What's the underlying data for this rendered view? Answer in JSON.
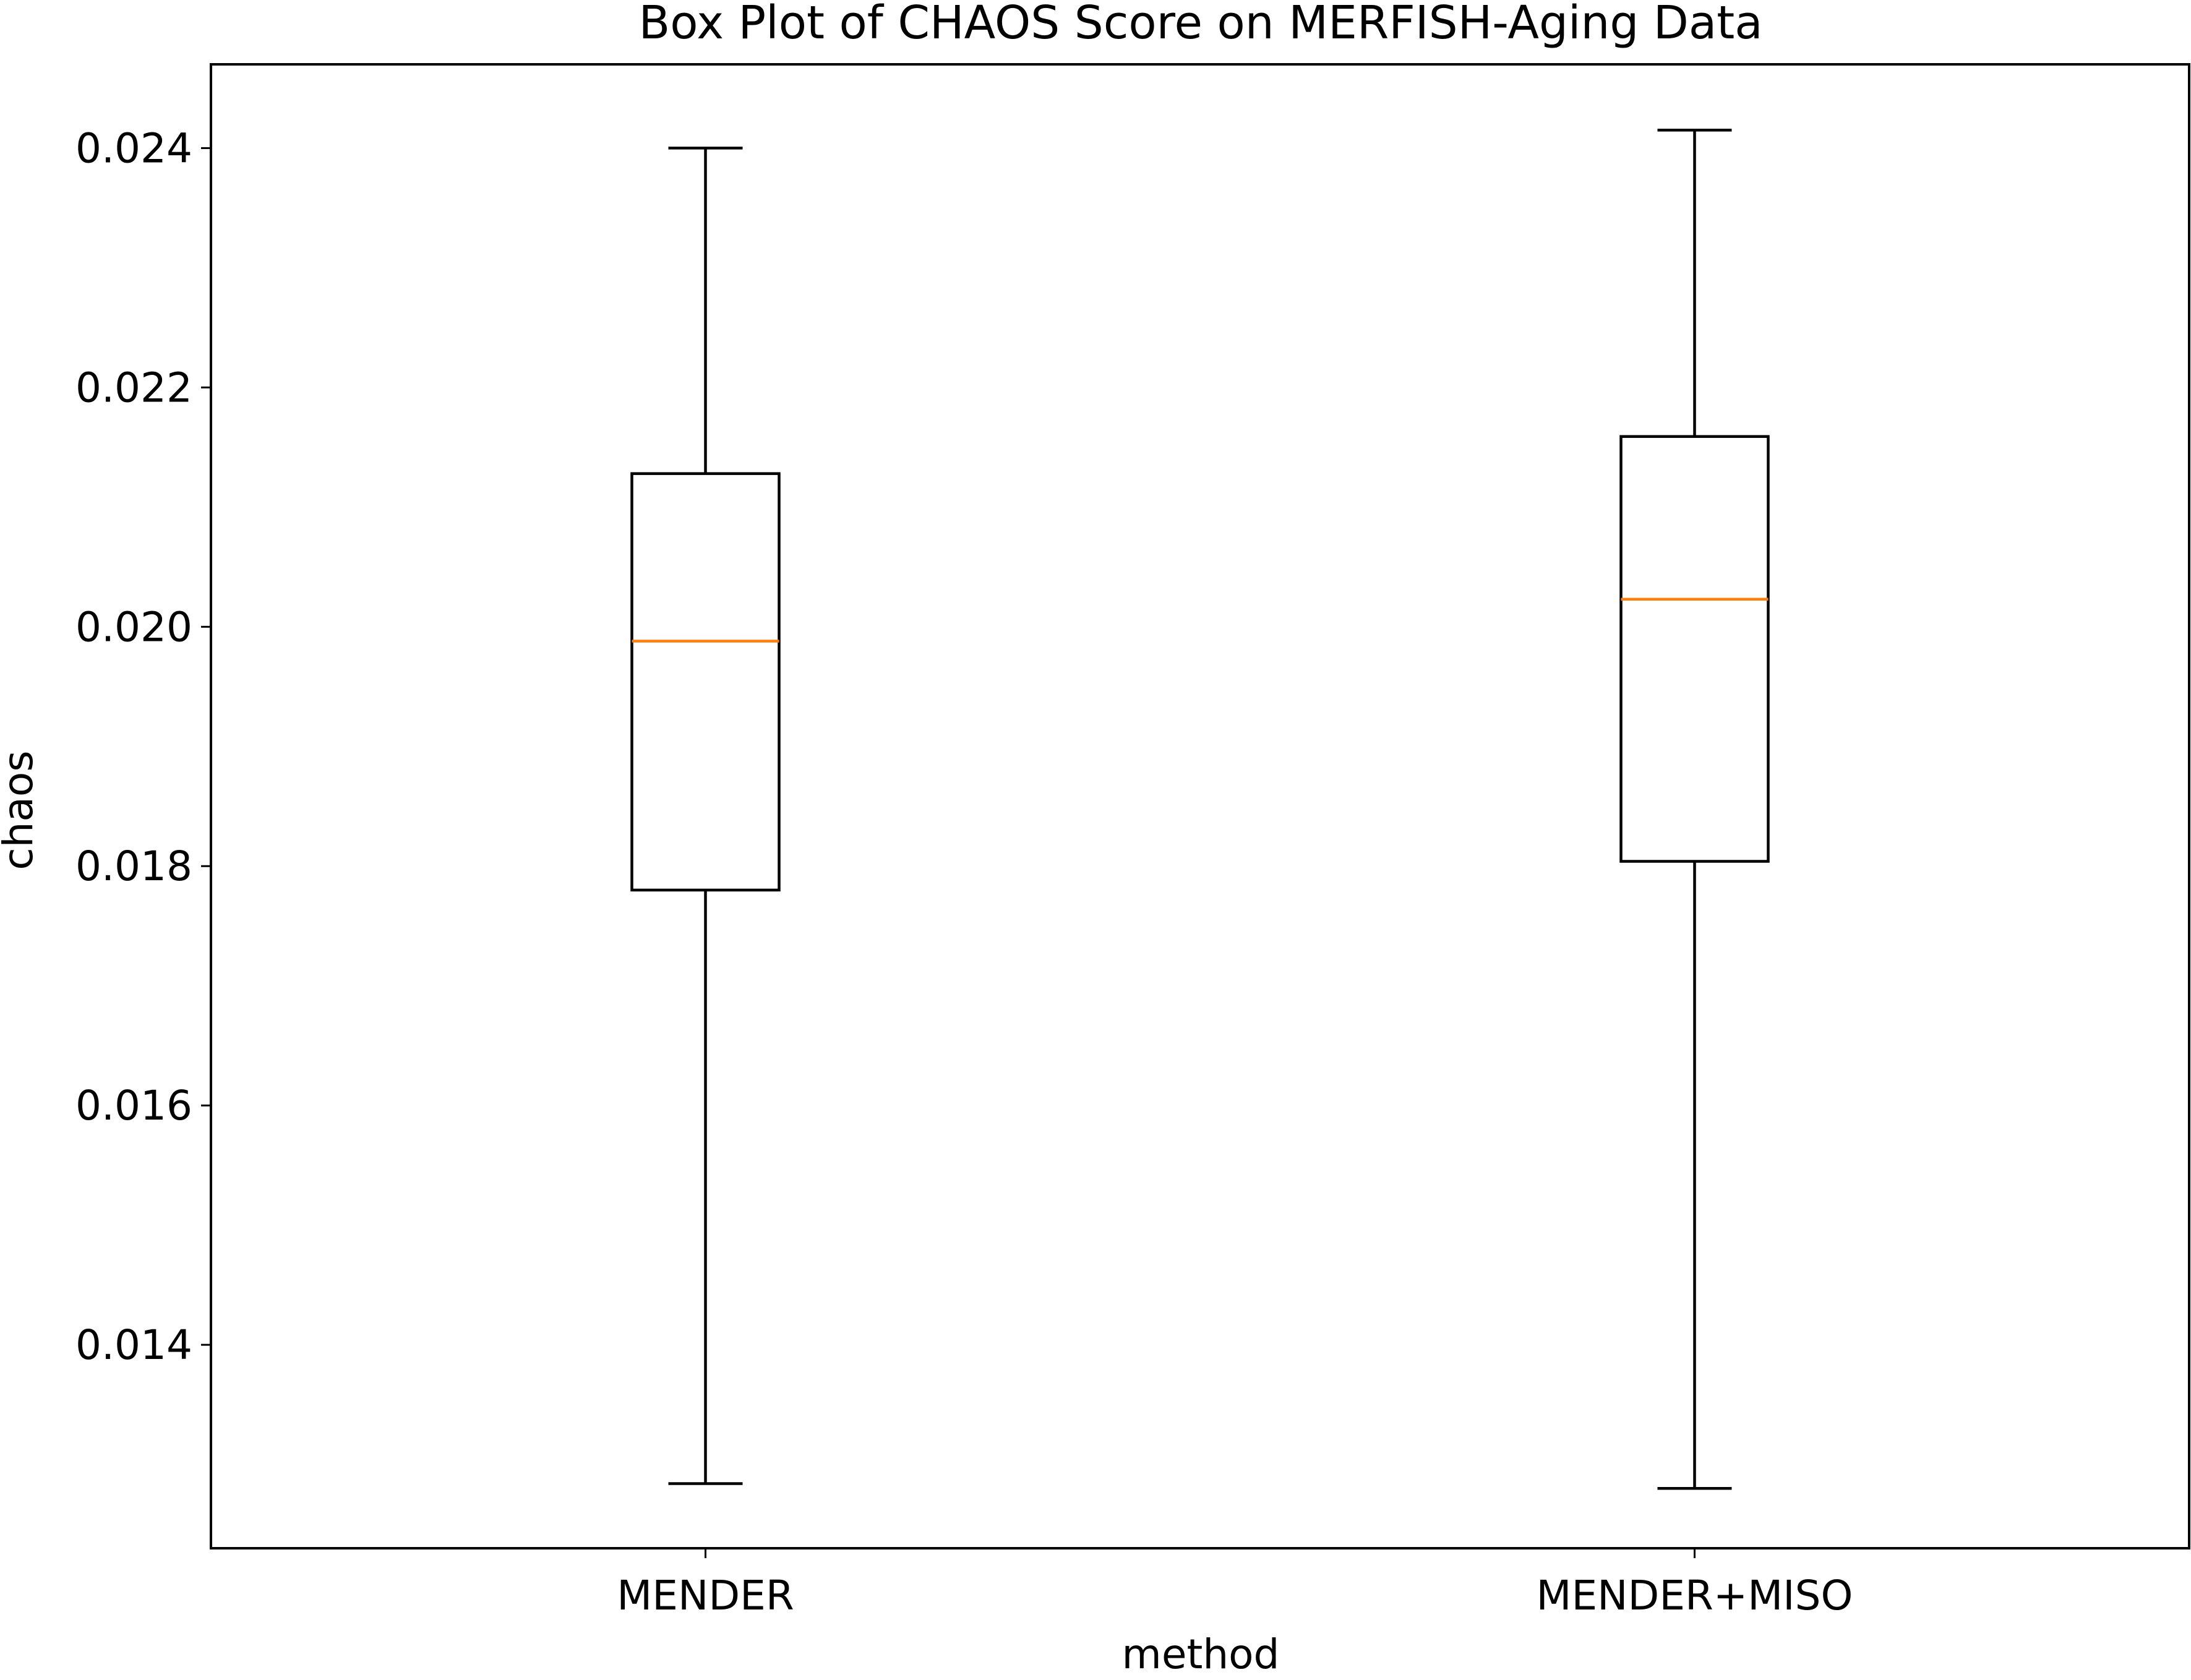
{
  "chart_data": {
    "type": "box",
    "title": "Box Plot of CHAOS Score on MERFISH-Aging Data",
    "xlabel": "method",
    "ylabel": "chaos",
    "ylim": [
      0.0123,
      0.0247
    ],
    "yticks": [
      0.014,
      0.016,
      0.018,
      0.02,
      0.022,
      0.024
    ],
    "ytick_labels": [
      "0.014",
      "0.016",
      "0.018",
      "0.020",
      "0.022",
      "0.024"
    ],
    "grid": false,
    "legend": "none",
    "categories": [
      "MENDER",
      "MENDER+MISO"
    ],
    "boxes": [
      {
        "label": "MENDER",
        "whisker_low": 0.01284,
        "q1": 0.0178,
        "median": 0.01988,
        "q3": 0.02128,
        "whisker_high": 0.024
      },
      {
        "label": "MENDER+MISO",
        "whisker_low": 0.0128,
        "q1": 0.01804,
        "median": 0.02023,
        "q3": 0.02159,
        "whisker_high": 0.02415
      }
    ],
    "colors": {
      "box": "#000000",
      "median": "#ff7f0e"
    }
  }
}
